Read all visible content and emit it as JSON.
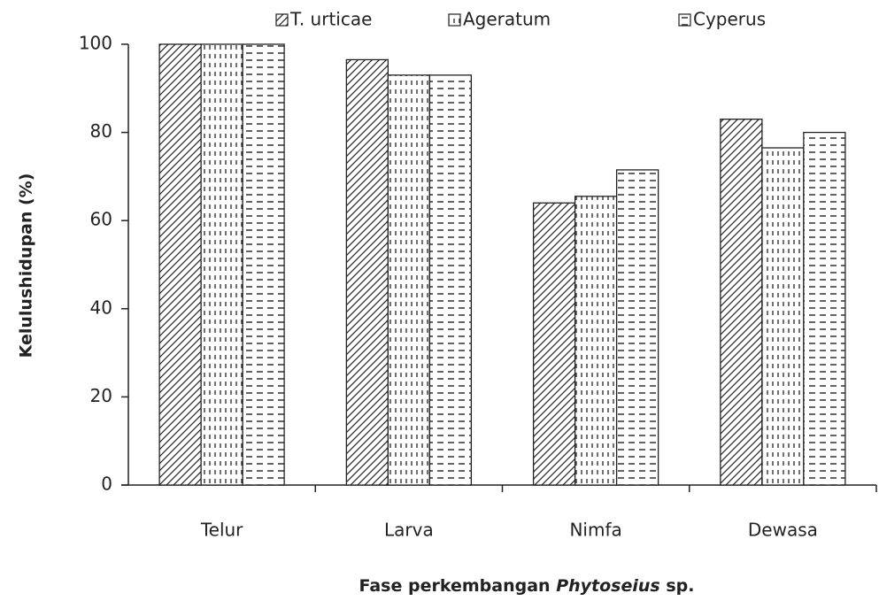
{
  "chart_data": {
    "type": "bar",
    "ylabel": "Kelulushidupan (%)",
    "xlabel": [
      "Fase perkembangan",
      "Phytoseius",
      "sp."
    ],
    "categories": [
      "Telur",
      "Larva",
      "Nimfa",
      "Dewasa"
    ],
    "series": [
      {
        "name": "T. urticae",
        "pattern": "diagonal",
        "values": [
          100,
          96.5,
          64,
          83
        ]
      },
      {
        "name": "Ageratum",
        "pattern": "vertical-dash",
        "values": [
          100,
          93,
          65.5,
          76.5
        ]
      },
      {
        "name": "Cyperus",
        "pattern": "horizontal-dash",
        "values": [
          100,
          93,
          71.5,
          80
        ]
      }
    ],
    "ylim": [
      0,
      100
    ],
    "yticks": [
      0,
      20,
      40,
      60,
      80,
      100
    ],
    "grid": false,
    "legend": "top"
  }
}
